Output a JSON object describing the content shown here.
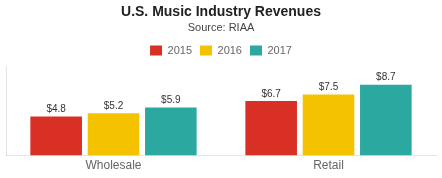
{
  "chart_data": {
    "type": "bar",
    "title": "U.S. Music Industry Revenues",
    "subtitle": "Source: RIAA",
    "categories": [
      "Wholesale",
      "Retail"
    ],
    "series": [
      {
        "name": "2015",
        "color": "#d93025",
        "values": [
          4.8,
          6.7
        ],
        "value_labels": [
          "$4.8",
          "$6.7"
        ]
      },
      {
        "name": "2016",
        "color": "#f5c200",
        "values": [
          5.2,
          7.5
        ],
        "value_labels": [
          "$5.2",
          "$7.5"
        ]
      },
      {
        "name": "2017",
        "color": "#2ba8a0",
        "values": [
          5.9,
          8.7
        ],
        "value_labels": [
          "$5.9",
          "$8.7"
        ]
      }
    ],
    "ylim": [
      0,
      11.0
    ],
    "yticks": [],
    "grid": false,
    "legend": "top",
    "data_labels": true,
    "tick_labels": "x"
  }
}
